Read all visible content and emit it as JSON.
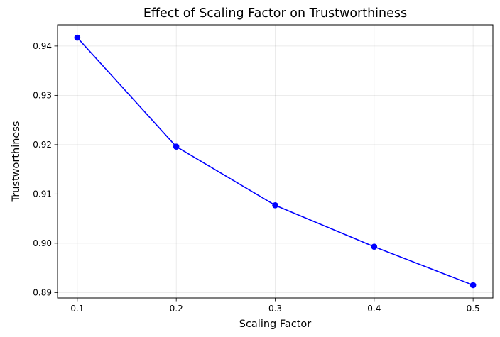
{
  "chart_data": {
    "type": "line",
    "title": "Effect of Scaling Factor on Trustworthiness",
    "xlabel": "Scaling Factor",
    "ylabel": "Trustworthiness",
    "x": [
      0.1,
      0.2,
      0.3,
      0.4,
      0.5
    ],
    "series": [
      {
        "values": [
          0.9417,
          0.9196,
          0.9077,
          0.8993,
          0.8915
        ],
        "color": "#0000ff",
        "marker": "circle"
      }
    ],
    "xticks": [
      0.1,
      0.2,
      0.3,
      0.4,
      0.5
    ],
    "xtick_labels": [
      "0.1",
      "0.2",
      "0.3",
      "0.4",
      "0.5"
    ],
    "yticks": [
      0.89,
      0.9,
      0.91,
      0.92,
      0.93,
      0.94
    ],
    "ytick_labels": [
      "0.89",
      "0.90",
      "0.91",
      "0.92",
      "0.93",
      "0.94"
    ],
    "xlim": [
      0.08,
      0.52
    ],
    "ylim": [
      0.8889,
      0.9443
    ],
    "grid": true,
    "legend": false
  }
}
